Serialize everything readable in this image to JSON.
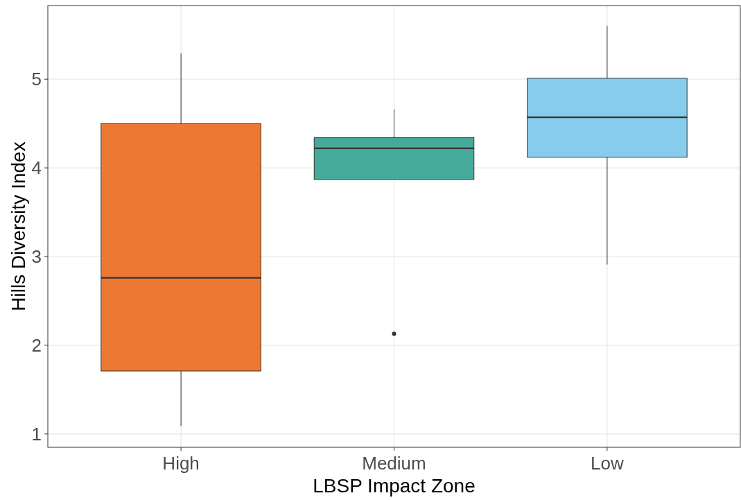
{
  "chart_data": {
    "type": "box",
    "xlabel": "LBSP Impact Zone",
    "ylabel": "Hills Diversity Index",
    "categories": [
      "High",
      "Medium",
      "Low"
    ],
    "colors": [
      "#ed7833",
      "#45aa9a",
      "#87ccec"
    ],
    "boxes": [
      {
        "low": 1.09,
        "q1": 1.71,
        "median": 2.76,
        "q3": 4.5,
        "high": 5.29
      },
      {
        "low": 3.87,
        "q1": 3.87,
        "median": 4.22,
        "q3": 4.34,
        "high": 4.66,
        "outliers": [
          2.13
        ]
      },
      {
        "low": 2.91,
        "q1": 4.12,
        "median": 4.57,
        "q3": 5.01,
        "high": 5.6
      }
    ],
    "ylim": [
      0.85,
      5.83
    ],
    "yticks": [
      1,
      2,
      3,
      4,
      5
    ],
    "grid": true
  }
}
